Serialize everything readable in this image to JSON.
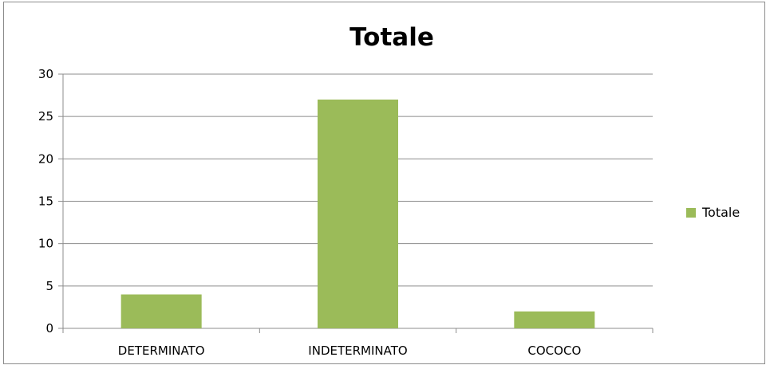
{
  "chart_data": {
    "type": "bar",
    "title": "Totale",
    "categories": [
      "DETERMINATO",
      "INDETERMINATO",
      "COCOCO"
    ],
    "series": [
      {
        "name": "Totale",
        "values": [
          4,
          27,
          2
        ],
        "color": "#9bbb59"
      }
    ],
    "ylim": [
      0,
      30
    ],
    "yticks": [
      0,
      5,
      10,
      15,
      20,
      25,
      30
    ],
    "grid": true,
    "legend": "right",
    "xlabel": "",
    "ylabel": ""
  }
}
